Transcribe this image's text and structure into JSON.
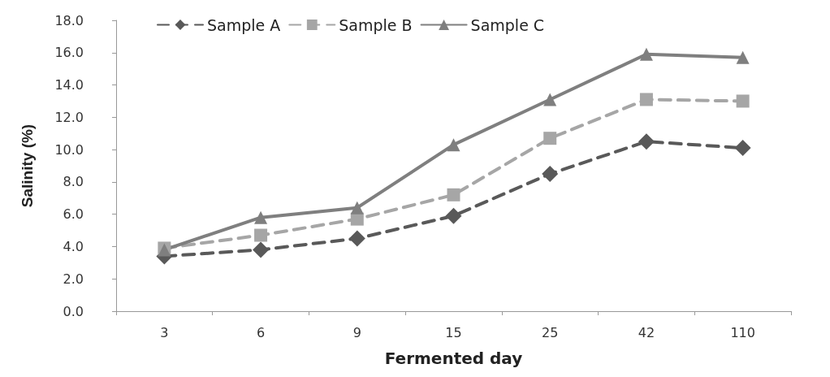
{
  "chart_data": {
    "type": "line",
    "xlabel": "Fermented day",
    "ylabel": "Salinity (%)",
    "categories": [
      "3",
      "6",
      "9",
      "15",
      "25",
      "42",
      "110"
    ],
    "ylim": [
      0,
      18
    ],
    "yticks": [
      {
        "value": 0,
        "label": "0.0"
      },
      {
        "value": 2,
        "label": "2.0"
      },
      {
        "value": 4,
        "label": "4.0"
      },
      {
        "value": 6,
        "label": "6.0"
      },
      {
        "value": 8,
        "label": "8.0"
      },
      {
        "value": 10,
        "label": "10.0"
      },
      {
        "value": 12,
        "label": "12.0"
      },
      {
        "value": 14,
        "label": "14.0"
      },
      {
        "value": 16,
        "label": "16.0"
      },
      {
        "value": 18,
        "label": "18.0"
      }
    ],
    "grid": false,
    "legend": "top left",
    "series": [
      {
        "name": "Sample A",
        "color": "#595959",
        "marker": "diamond",
        "line_style": "dashed",
        "values": [
          3.4,
          3.8,
          4.5,
          5.9,
          8.5,
          10.5,
          10.1
        ]
      },
      {
        "name": "Sample B",
        "color": "#a6a6a6",
        "marker": "square",
        "line_style": "dashed",
        "values": [
          3.9,
          4.7,
          5.7,
          7.2,
          10.7,
          13.1,
          13.0
        ]
      },
      {
        "name": "Sample C",
        "color": "#7f7f7f",
        "marker": "triangle",
        "line_style": "solid",
        "values": [
          3.8,
          5.8,
          6.4,
          10.3,
          13.1,
          15.9,
          15.7
        ]
      }
    ]
  }
}
